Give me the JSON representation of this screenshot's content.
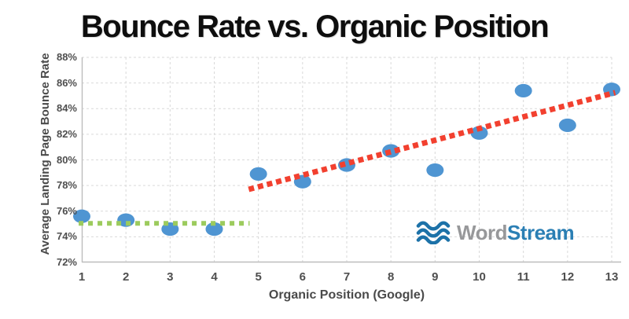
{
  "title": "Bounce Rate vs. Organic Position",
  "y_axis": {
    "title": "Average Landing Page Bounce Rate",
    "ticks": [
      "88%",
      "86%",
      "84%",
      "82%",
      "80%",
      "78%",
      "76%",
      "74%",
      "72%"
    ]
  },
  "x_axis": {
    "title": "Organic Position (Google)",
    "ticks": [
      "1",
      "2",
      "3",
      "4",
      "5",
      "6",
      "7",
      "8",
      "9",
      "10",
      "11",
      "12",
      "13"
    ]
  },
  "logo": {
    "word": "Word",
    "stream": "Stream",
    "word_color": "#97989a",
    "stream_color": "#2b7fb4",
    "icon_color": "#1d72a8"
  },
  "colors": {
    "point": "#4f95d2",
    "trend_low": "#9ccb5d",
    "trend_high": "#f2402f",
    "gridline": "#d9d9d9",
    "axis_line": "#bdbdbd",
    "tick_label": "#4f4f4f",
    "title_text": "#0e0e0e"
  },
  "chart_data": {
    "type": "scatter",
    "title": "Bounce Rate vs. Organic Position",
    "xlabel": "Organic Position (Google)",
    "ylabel": "Average Landing Page Bounce Rate",
    "xlim": [
      1,
      13
    ],
    "ylim": [
      72,
      88
    ],
    "x_tick_step": 1,
    "y_tick_step": 2,
    "grid": true,
    "x": [
      1,
      2,
      3,
      4,
      5,
      6,
      7,
      8,
      9,
      10,
      11,
      12,
      13
    ],
    "y": [
      75.6,
      75.3,
      74.6,
      74.6,
      78.9,
      78.3,
      79.6,
      80.7,
      79.2,
      82.1,
      85.4,
      82.7,
      85.5
    ],
    "trend_lines": [
      {
        "name": "flat-trend-positions-1-5",
        "color": "#9ccb5d",
        "style": "dotted",
        "x1": 0.93,
        "y1": 75.05,
        "x2": 4.8,
        "y2": 75.05
      },
      {
        "name": "rising-trend-positions-5-13",
        "color": "#f2402f",
        "style": "dotted",
        "x1": 4.78,
        "y1": 77.7,
        "x2": 13.08,
        "y2": 85.25
      }
    ]
  }
}
